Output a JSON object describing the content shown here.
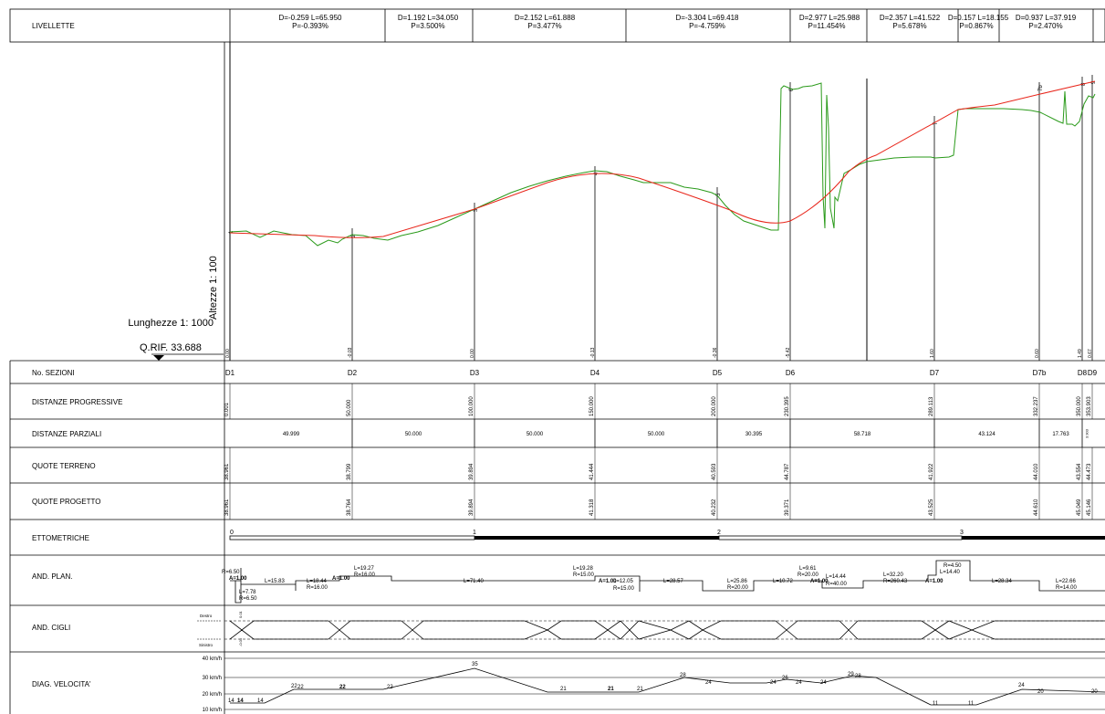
{
  "livellette": {
    "label": "LIVELLETTE",
    "cells": [
      {
        "l1": "D=-0.259 L=65.950",
        "l2": "P=-0.393%"
      },
      {
        "l1": "D=1.192 L=34.050",
        "l2": "P=3.500%"
      },
      {
        "l1": "D=2.152 L=61.888",
        "l2": "P=3.477%"
      },
      {
        "l1": "D=-3.304 L=69.418",
        "l2": "P=-4.759%"
      },
      {
        "l1": "D=2.977 L=25.988",
        "l2": "P=11.454%"
      },
      {
        "l1": "D=2.357 L=41.522",
        "l2": "P=5.678%"
      },
      {
        "l1": "D=0.157 L=18.155",
        "l2": "P=0.867%"
      },
      {
        "l1": "D=0.937 L=37.919",
        "l2": "P=2.470%"
      }
    ]
  },
  "profile": {
    "altezze_label": "Altezze 1: 100",
    "lunghezze_label": "Lunghezze 1: 1000",
    "qrif_label": "Q.RIF. 33.688",
    "section_tags": [
      "1",
      "2",
      "3",
      "4",
      "5",
      "6",
      "7",
      "7b",
      "8",
      "9"
    ],
    "diffs": [
      "0.00",
      "-0.03",
      "0.00",
      "-0.13",
      "-0.36",
      "-5.42",
      "1.60",
      "0.60",
      "1.49",
      "0.67"
    ]
  },
  "rows": {
    "sezioni_label": "No. SEZIONI",
    "sezioni": [
      "D1",
      "D2",
      "D3",
      "D4",
      "D5",
      "D6",
      "D7",
      "D7b",
      "D8",
      "D9"
    ],
    "distanze_label": "DISTANZE PROGRESSIVE",
    "distanze": [
      "0.001",
      "50.000",
      "100.000",
      "150.000",
      "200.000",
      "230.395",
      "289.113",
      "332.237",
      "350.000",
      "353.903"
    ],
    "parziali_label": "DISTANZE PARZIALI",
    "parziali": [
      "49.999",
      "50.000",
      "50.000",
      "50.000",
      "30.395",
      "58.718",
      "43.124",
      "17.763",
      "3.903"
    ],
    "terreno_label": "QUOTE TERRENO",
    "terreno": [
      "38.961",
      "38.799",
      "39.894",
      "41.444",
      "40.593",
      "44.787",
      "41.922",
      "44.010",
      "43.554",
      "44.473"
    ],
    "progetto_label": "QUOTE PROGETTO",
    "progetto": [
      "38.961",
      "38.764",
      "39.894",
      "41.318",
      "40.232",
      "39.371",
      "43.525",
      "44.610",
      "45.049",
      "45.146"
    ],
    "ettometriche_label": "ETTOMETRICHE",
    "ettometriche": [
      "0",
      "1",
      "2",
      "3"
    ],
    "andplan_label": "AND. PLAN.",
    "andplan": [
      "R=6.50",
      "A=1.00",
      "L=7.78",
      "R=6.50",
      "L=15.83",
      "L=18.44",
      "R=16.00",
      "A=1.00",
      "L=19.27",
      "R=16.00",
      "L=71.40",
      "L=19.28",
      "R=15.00",
      "A=1.00",
      "L=12.05",
      "R=15.00",
      "L=28.57",
      "L=25.86",
      "R=20.00",
      "L=10.72",
      "L=9.61",
      "R=20.00",
      "A=1.00",
      "L=14.44",
      "R=40.00",
      "L=32.20",
      "R=260.43",
      "A=1.00",
      "R=4.50",
      "L=14.40",
      "L=28.34",
      "L=22.66",
      "R=14.00"
    ],
    "cigli_label": "AND. CIGLI",
    "destro": "Destro",
    "sinistro": "Sinistro",
    "cigli_values": [
      "0.01",
      "-0.01"
    ],
    "velocita_label": "DIAG. VELOCITA'",
    "speeds_axis": [
      "40 km/h",
      "30 km/h",
      "20 km/h",
      "10 km/h"
    ],
    "speeds": [
      "14",
      "14",
      "14",
      "22",
      "22",
      "22",
      "22",
      "35",
      "21",
      "21",
      "21",
      "28",
      "24",
      "24",
      "26",
      "24",
      "24",
      "29",
      "28",
      "11",
      "11",
      "24",
      "20",
      "20"
    ]
  },
  "colors": {
    "terrain": "#2a9a1a",
    "design": "#e8261b"
  }
}
